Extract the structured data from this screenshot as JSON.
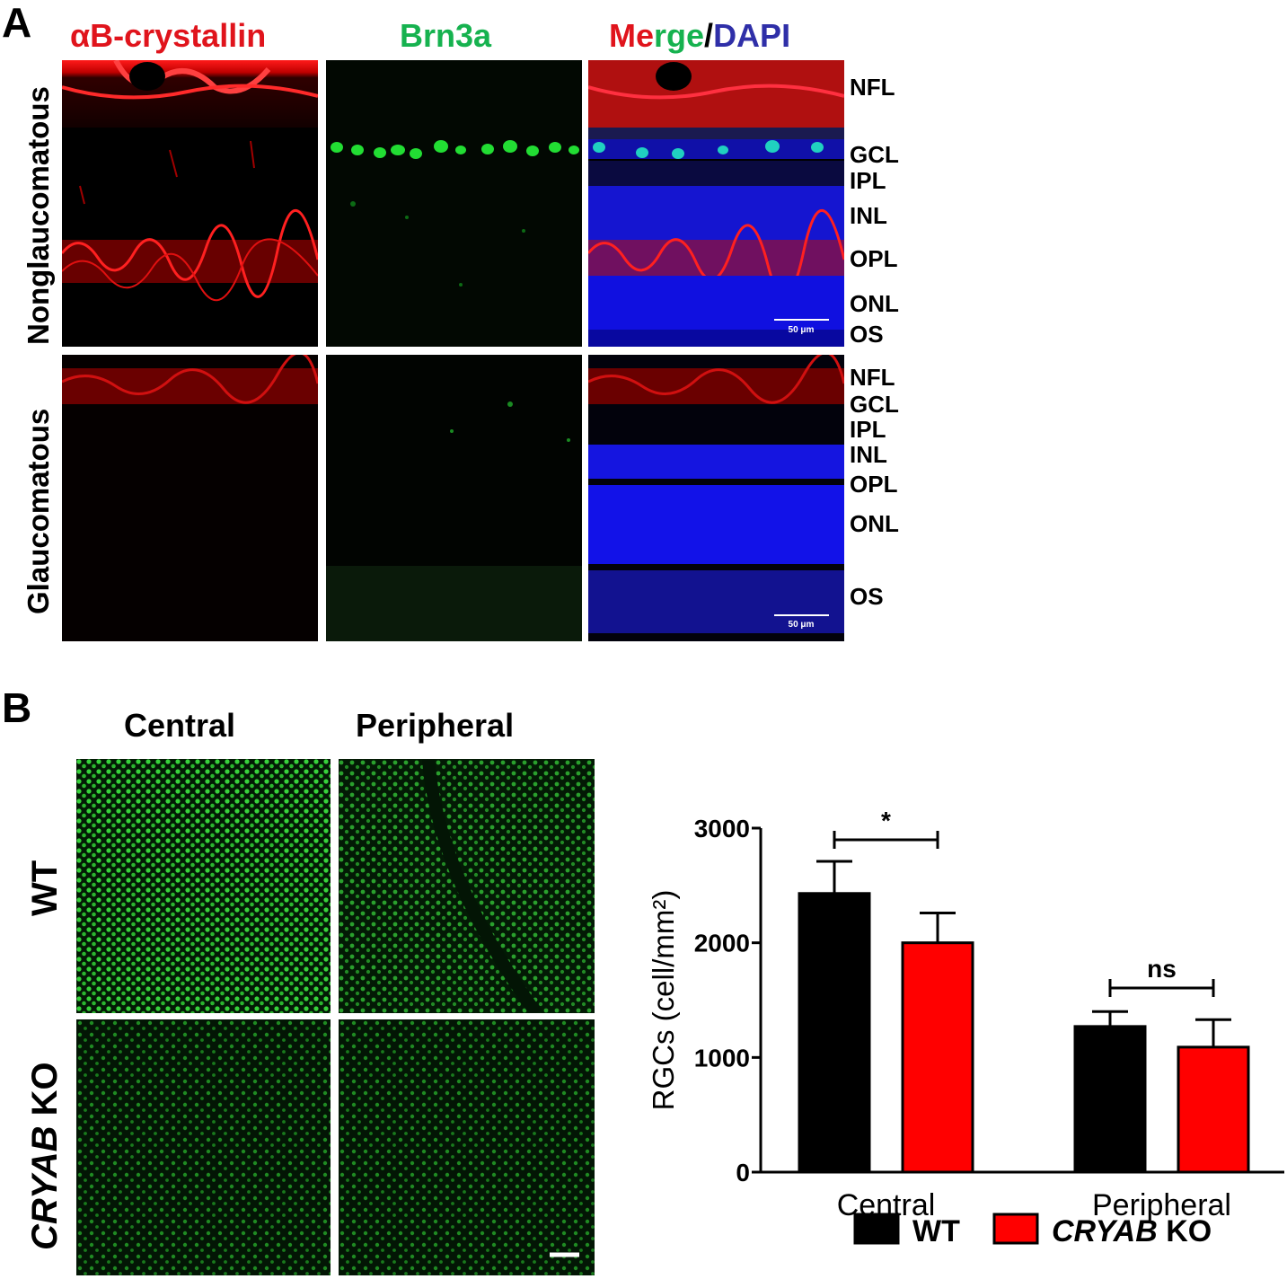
{
  "panel_a": {
    "letter": "A",
    "columns": {
      "col1": "αB-crystallin",
      "col2": "Brn3a",
      "col3": {
        "part1": "Me",
        "part2": "rge",
        "slash": "/",
        "part3": "DAPI"
      }
    },
    "rows": [
      "Nonglaucomatous",
      "Glaucomatous"
    ],
    "layers_top": [
      "NFL",
      "GCL",
      "IPL",
      "INL",
      "OPL",
      "ONL",
      "OS"
    ],
    "layers_bottom": [
      "NFL",
      "GCL",
      "IPL",
      "INL",
      "OPL",
      "ONL",
      "OS"
    ],
    "scale_label": "50 μm"
  },
  "panel_b": {
    "letter": "B",
    "columns": [
      "Central",
      "Peripheral"
    ],
    "rows": {
      "wt": "WT",
      "ko_gene": "CRYAB",
      "ko_suffix": " KO"
    }
  },
  "chart_data": {
    "type": "bar",
    "categories": [
      "Central",
      "Peripheral"
    ],
    "series": [
      {
        "name": "WT",
        "values": [
          2430,
          1270
        ],
        "errors": [
          280,
          130
        ],
        "color": "#000000"
      },
      {
        "name": "CRYAB KO",
        "values": [
          2000,
          1090
        ],
        "errors": [
          260,
          240
        ],
        "color": "#ff0000"
      }
    ],
    "ylabel": "RGCs (cell/mm²)",
    "ylim": [
      0,
      3000
    ],
    "yticks": [
      0,
      1000,
      2000,
      3000
    ],
    "significance": [
      {
        "category": "Central",
        "label": "*"
      },
      {
        "category": "Peripheral",
        "label": "ns"
      }
    ],
    "legend": {
      "position": "bottom",
      "items": [
        {
          "name": "WT",
          "gene": "",
          "suffix": "WT"
        },
        {
          "name": "CRYAB KO",
          "gene": "CRYAB",
          "suffix": " KO"
        }
      ]
    }
  }
}
